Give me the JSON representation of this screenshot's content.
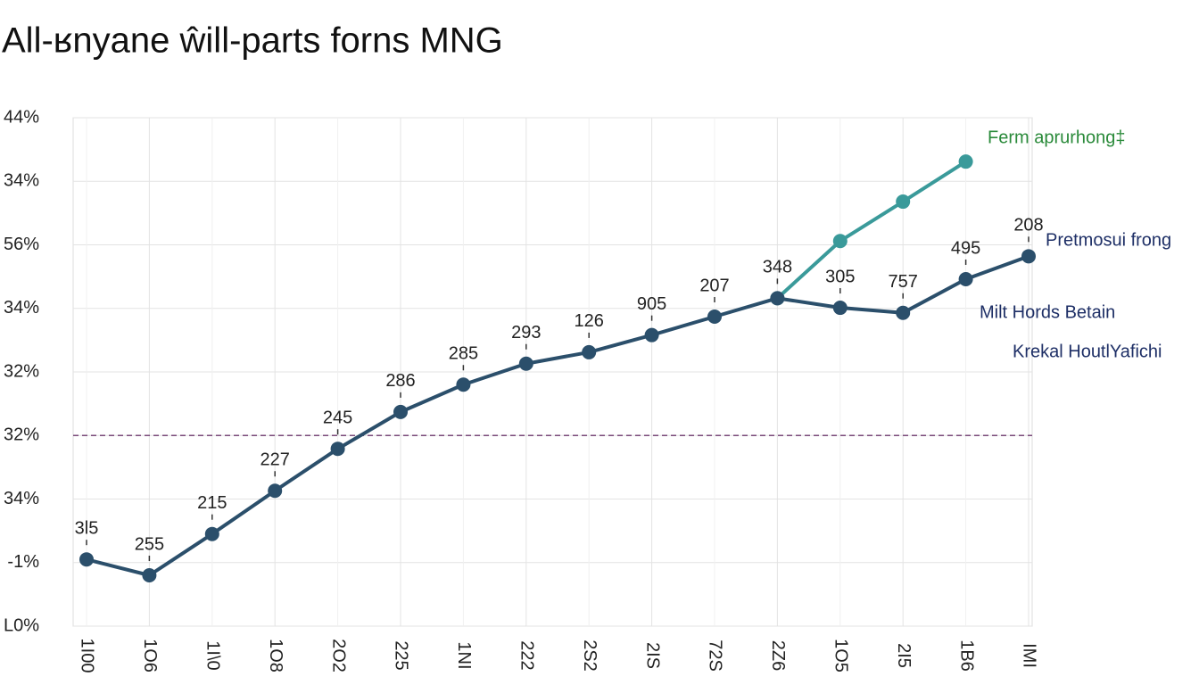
{
  "chart_data": {
    "type": "line",
    "title": "All-ʁnyane ŵill-parts forns MNG",
    "categories": [
      "1I00",
      "1O6",
      "1I\\0",
      "1O8",
      "2O2",
      "225",
      "1NI",
      "222",
      "2S2",
      "2IS",
      "72S",
      "2Z6",
      "1O5",
      "2I5",
      "1B6",
      "IMI"
    ],
    "series": [
      {
        "name": "Pretmosui frong",
        "color": "#2b4f6b",
        "values": [
          1.05,
          0.8,
          1.45,
          2.13,
          2.79,
          3.37,
          3.8,
          4.13,
          4.31,
          4.58,
          4.87,
          5.16,
          5.01,
          4.93,
          5.46,
          5.82
        ],
        "value_labels": [
          "3l5",
          "255",
          "215",
          "227",
          "245",
          "286",
          "285",
          "293",
          "126",
          "905",
          "207",
          "348",
          "305",
          "757",
          "495",
          "208"
        ]
      },
      {
        "name": "Ferm aprurhong‡",
        "color": "#3a9a9a",
        "values": [
          null,
          null,
          null,
          null,
          null,
          null,
          null,
          null,
          null,
          null,
          null,
          5.16,
          6.06,
          6.68,
          7.31,
          null
        ]
      }
    ],
    "annotations": [
      "Milt Hords Betain",
      "Krekal HoutlYafichi"
    ],
    "reference_line": {
      "value": 3,
      "color": "#7a4a7a"
    },
    "ylim": [
      0,
      8
    ],
    "yticks": [
      {
        "value": 0,
        "label": "L0%"
      },
      {
        "value": 1,
        "label": "-1%"
      },
      {
        "value": 2,
        "label": "34%"
      },
      {
        "value": 3,
        "label": "32%"
      },
      {
        "value": 4,
        "label": "32%"
      },
      {
        "value": 5,
        "label": "34%"
      },
      {
        "value": 6,
        "label": "56%"
      },
      {
        "value": 7,
        "label": "34%"
      },
      {
        "value": 8,
        "label": "44%"
      }
    ],
    "grid": true
  }
}
